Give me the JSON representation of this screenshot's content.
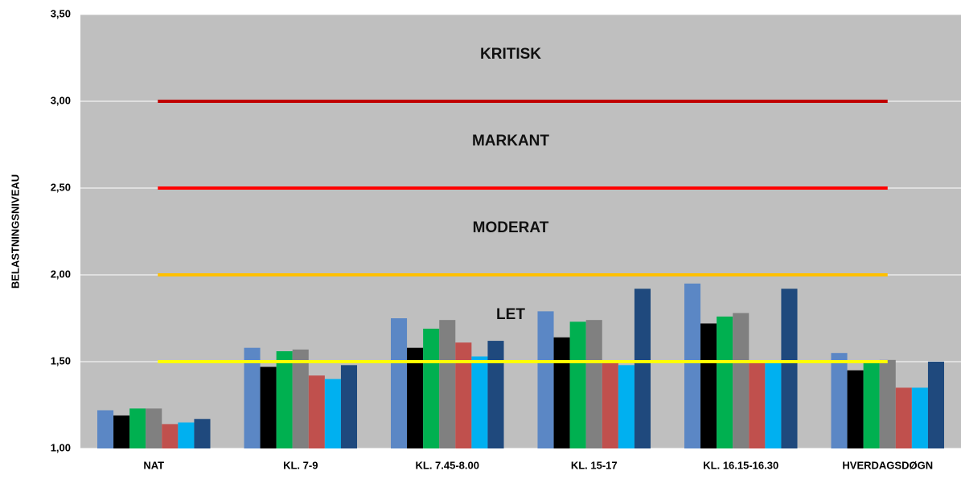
{
  "chart_data": {
    "type": "bar",
    "ylabel": "BELASTNINGSNIVEAU",
    "categories": [
      "NAT",
      "KL. 7-9",
      "KL. 7.45-8.00",
      "KL. 15-17",
      "KL. 16.15-16.30",
      "HVERDAGSDØGN"
    ],
    "series": [
      {
        "color": "#5b87c5",
        "values": [
          1.22,
          1.58,
          1.75,
          1.79,
          1.95,
          1.55
        ]
      },
      {
        "color": "#000000",
        "values": [
          1.19,
          1.47,
          1.58,
          1.64,
          1.72,
          1.45
        ]
      },
      {
        "color": "#00b050",
        "values": [
          1.23,
          1.56,
          1.69,
          1.73,
          1.76,
          1.5
        ]
      },
      {
        "color": "#808080",
        "values": [
          1.23,
          1.57,
          1.74,
          1.74,
          1.78,
          1.51
        ]
      },
      {
        "color": "#c0504d",
        "values": [
          1.14,
          1.42,
          1.61,
          1.5,
          1.5,
          1.35
        ]
      },
      {
        "color": "#00b0f0",
        "values": [
          1.15,
          1.4,
          1.53,
          1.48,
          1.5,
          1.35
        ]
      },
      {
        "color": "#1f497d",
        "values": [
          1.17,
          1.48,
          1.62,
          1.92,
          1.92,
          1.5
        ]
      }
    ],
    "ylim": [
      1.0,
      3.5
    ],
    "yticks": [
      {
        "value": 1.0,
        "label": "1,00"
      },
      {
        "value": 1.5,
        "label": "1,50"
      },
      {
        "value": 2.0,
        "label": "2,00"
      },
      {
        "value": 2.5,
        "label": "2,50"
      },
      {
        "value": 3.0,
        "label": "3,00"
      },
      {
        "value": 3.5,
        "label": "3,50"
      }
    ],
    "grid": true,
    "reference_lines": [
      {
        "value": 1.5,
        "color": "#ffff00"
      },
      {
        "value": 2.0,
        "color": "#ffc000"
      },
      {
        "value": 2.5,
        "color": "#ff0000"
      },
      {
        "value": 3.0,
        "color": "#c00000"
      }
    ],
    "annotations": [
      "LET",
      "MODERAT",
      "MARKANT",
      "KRITISK"
    ]
  }
}
